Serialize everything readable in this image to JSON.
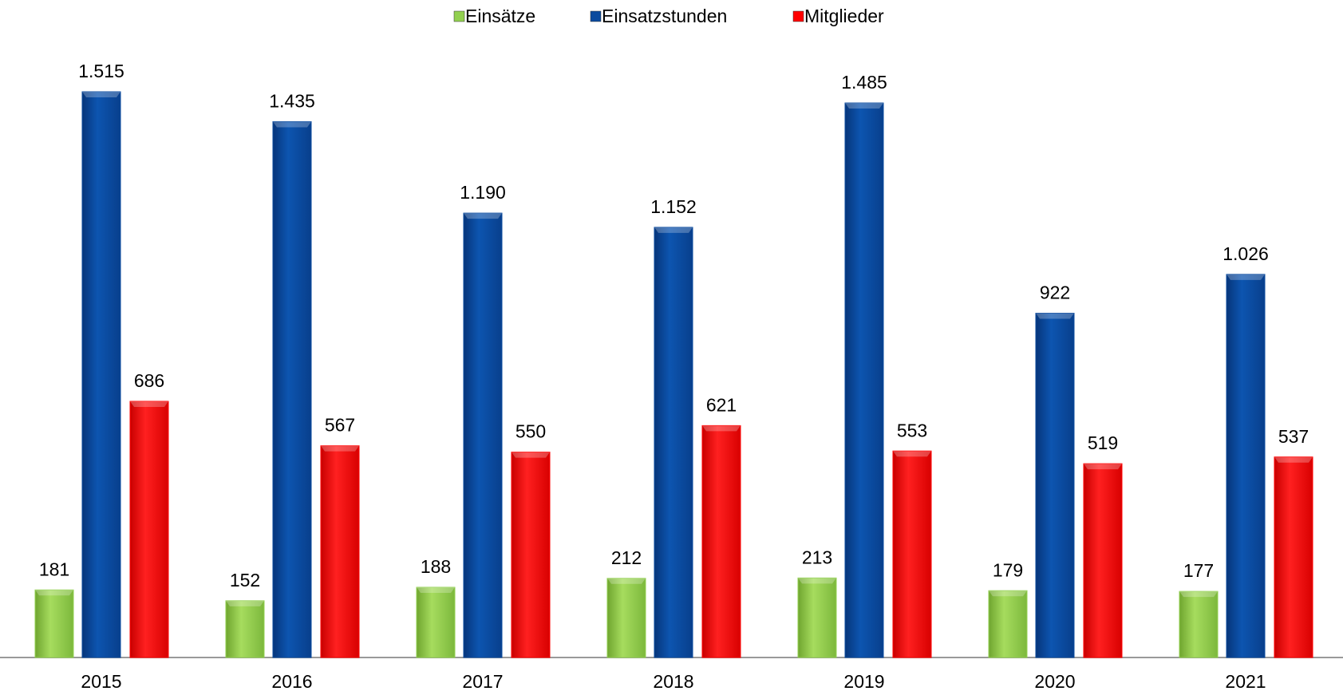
{
  "chart_data": {
    "type": "bar",
    "categories": [
      "2015",
      "2016",
      "2017",
      "2018",
      "2019",
      "2020",
      "2021"
    ],
    "series": [
      {
        "name": "Einsätze",
        "color": "#92d050",
        "values": [
          181,
          152,
          188,
          212,
          213,
          179,
          177
        ]
      },
      {
        "name": "Einsatzstunden",
        "color": "#0a4a9e",
        "values": [
          1515,
          1435,
          1190,
          1152,
          1485,
          922,
          1026
        ],
        "value_labels": [
          "1.515",
          "1.435",
          "1.190",
          "1.152",
          "1.485",
          "922",
          "1.026"
        ]
      },
      {
        "name": "Mitglieder",
        "color": "#ff0000",
        "values": [
          686,
          567,
          550,
          621,
          553,
          519,
          537
        ]
      }
    ],
    "legend": "top"
  }
}
